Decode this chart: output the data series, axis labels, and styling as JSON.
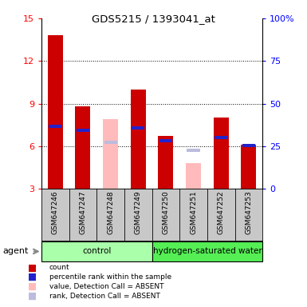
{
  "title": "GDS5215 / 1393041_at",
  "samples": [
    "GSM647246",
    "GSM647247",
    "GSM647248",
    "GSM647249",
    "GSM647250",
    "GSM647251",
    "GSM647252",
    "GSM647253"
  ],
  "red_values": [
    13.8,
    8.8,
    null,
    10.0,
    6.7,
    null,
    8.0,
    6.1
  ],
  "blue_values": [
    7.4,
    7.1,
    null,
    7.3,
    6.4,
    null,
    6.6,
    6.05
  ],
  "pink_values": [
    null,
    null,
    7.9,
    null,
    null,
    4.8,
    null,
    null
  ],
  "light_blue_values": [
    null,
    null,
    6.3,
    null,
    null,
    5.7,
    null,
    null
  ],
  "ylim": [
    3,
    15
  ],
  "yticks_left": [
    3,
    6,
    9,
    12,
    15
  ],
  "right_tick_vals": [
    3,
    6,
    9,
    12,
    15
  ],
  "right_tick_labels": [
    "0",
    "25",
    "50",
    "75",
    "100%"
  ],
  "bar_width": 0.55,
  "control_color": "#aaffaa",
  "hw_color": "#55ee55",
  "red_color": "#cc0000",
  "blue_color": "#2222cc",
  "pink_color": "#ffbbbb",
  "light_blue_color": "#bbbbdd",
  "bg_color": "#c8c8c8",
  "legend_items": [
    [
      "#cc0000",
      "count"
    ],
    [
      "#2222cc",
      "percentile rank within the sample"
    ],
    [
      "#ffbbbb",
      "value, Detection Call = ABSENT"
    ],
    [
      "#bbbbdd",
      "rank, Detection Call = ABSENT"
    ]
  ]
}
